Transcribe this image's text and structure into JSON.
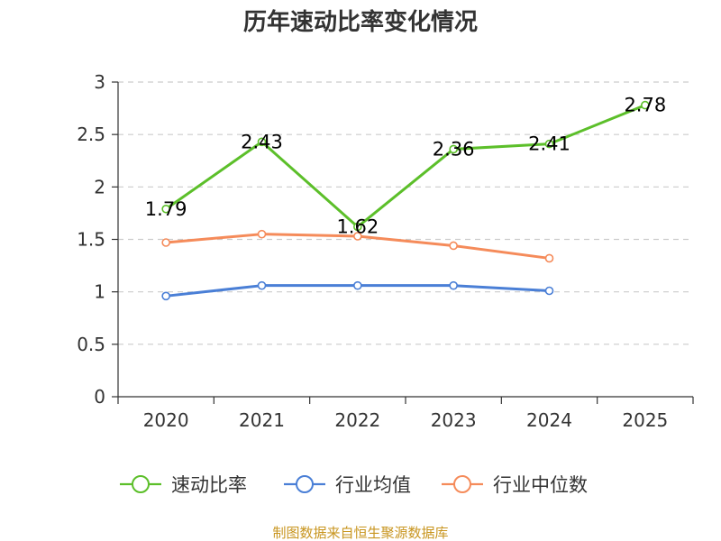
{
  "chart_data": {
    "type": "line",
    "title": "历年速动比率变化情况",
    "categories": [
      "2020",
      "2021",
      "2022",
      "2023",
      "2024",
      "2025"
    ],
    "ylim": [
      0,
      3
    ],
    "yticks": [
      "0",
      "0.5",
      "1",
      "1.5",
      "2",
      "2.5",
      "3"
    ],
    "grid": true,
    "legend_position": "bottom",
    "series": [
      {
        "name": "速动比率",
        "color": "#5cbf2a",
        "values": [
          1.79,
          2.43,
          1.62,
          2.36,
          2.41,
          2.78
        ],
        "labels": [
          "1.79",
          "2.43",
          "1.62",
          "2.36",
          "2.41",
          "2.78"
        ]
      },
      {
        "name": "行业均值",
        "color": "#4a7fd6",
        "values": [
          0.96,
          1.06,
          1.06,
          1.06,
          1.01,
          null
        ],
        "labels": []
      },
      {
        "name": "行业中位数",
        "color": "#f58b5a",
        "values": [
          1.47,
          1.55,
          1.53,
          1.44,
          1.32,
          null
        ],
        "labels": []
      }
    ]
  },
  "footer": {
    "source": "制图数据来自恒生聚源数据库"
  }
}
